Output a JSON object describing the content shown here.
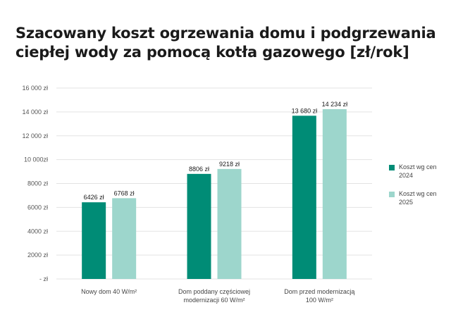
{
  "chart_data": {
    "type": "bar",
    "title_lines": [
      "Szacowany koszt ogrzewania domu i podgrzewania",
      "ciepłej wody za pomocą kotła gazowego [zł/rok]"
    ],
    "categories": [
      [
        "Nowy dom 40 W/m²"
      ],
      [
        "Dom poddany częściowej",
        "modernizacji 60 W/m²"
      ],
      [
        "Dom przed modernizacją",
        "100 W/m²"
      ]
    ],
    "series": [
      {
        "name_lines": [
          "Koszt wg cen",
          "2024"
        ],
        "color": "#008c76",
        "values": [
          6426,
          8806,
          13680
        ],
        "labels": [
          "6426 zł",
          "8806 zł",
          "13 680 zł"
        ]
      },
      {
        "name_lines": [
          "Koszt wg cen",
          "2025"
        ],
        "color": "#9dd6cc",
        "values": [
          6768,
          9218,
          14234
        ],
        "labels": [
          "6768 zł",
          "9218 zł",
          "14 234 zł"
        ]
      }
    ],
    "y_ticks": [
      0,
      2000,
      4000,
      6000,
      8000,
      10000,
      12000,
      14000,
      16000
    ],
    "y_tick_labels": [
      "- zł",
      "2000 zł",
      "4000 zł",
      "6000 zł",
      "8000 zł",
      "10 000zł",
      "12 000 zł",
      "14 000 zł",
      "16 000 zł"
    ],
    "ylim": [
      0,
      16000
    ],
    "grid": true,
    "legend_position": "right",
    "gridline_color": "#e3e3e3"
  }
}
